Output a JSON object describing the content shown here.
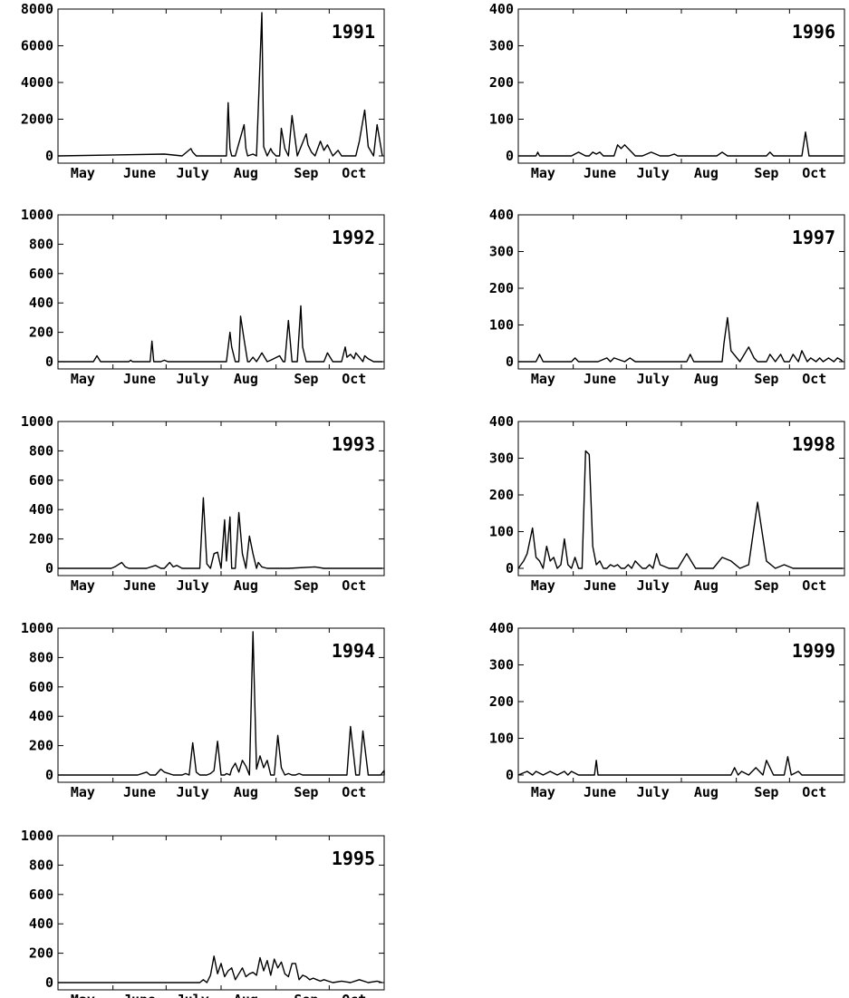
{
  "chart_data": [
    {
      "type": "line",
      "title": "1991",
      "months": [
        "May",
        "June",
        "July",
        "Aug",
        "Sep",
        "Oct"
      ],
      "ylim": [
        0,
        8000
      ],
      "yticks": [
        0,
        2000,
        4000,
        6000,
        8000
      ],
      "x": [
        0,
        60,
        70,
        75,
        76,
        78,
        80,
        95,
        96,
        97,
        98,
        100,
        105,
        106,
        107,
        110,
        112,
        115,
        116,
        118,
        120,
        121,
        123,
        125,
        126,
        128,
        130,
        132,
        135,
        140,
        141,
        143,
        145,
        148,
        150,
        152,
        155,
        158,
        160,
        165,
        168,
        170,
        173,
        175,
        178,
        180,
        183
      ],
      "y": [
        0,
        100,
        0,
        400,
        200,
        0,
        0,
        0,
        2900,
        400,
        0,
        0,
        1700,
        400,
        0,
        100,
        0,
        8000,
        500,
        0,
        400,
        200,
        0,
        0,
        1500,
        400,
        0,
        2200,
        0,
        1200,
        600,
        200,
        0,
        800,
        300,
        600,
        0,
        300,
        0,
        0,
        0,
        800,
        2500,
        500,
        0,
        1700,
        0
      ]
    },
    {
      "type": "line",
      "title": "1992",
      "months": [
        "May",
        "June",
        "July",
        "Aug",
        "Sep",
        "Oct"
      ],
      "ylim": [
        0,
        1000
      ],
      "yticks": [
        0,
        200,
        400,
        600,
        800,
        1000
      ],
      "x": [
        0,
        20,
        22,
        24,
        40,
        41,
        42,
        52,
        53,
        54,
        58,
        60,
        62,
        70,
        95,
        97,
        98,
        100,
        102,
        103,
        105,
        107,
        108,
        110,
        112,
        113,
        115,
        118,
        120,
        125,
        127,
        128,
        130,
        132,
        135,
        137,
        138,
        140,
        145,
        150,
        152,
        155,
        160,
        162,
        163,
        165,
        167,
        168,
        170,
        172,
        173,
        175,
        178,
        183
      ],
      "y": [
        0,
        0,
        40,
        0,
        0,
        10,
        0,
        0,
        140,
        0,
        0,
        10,
        0,
        0,
        0,
        200,
        100,
        0,
        0,
        310,
        150,
        0,
        0,
        30,
        0,
        20,
        60,
        0,
        10,
        40,
        0,
        0,
        280,
        0,
        0,
        380,
        100,
        0,
        0,
        0,
        60,
        0,
        0,
        100,
        30,
        50,
        20,
        60,
        30,
        0,
        40,
        20,
        0,
        0
      ]
    },
    {
      "type": "line",
      "title": "1993",
      "months": [
        "May",
        "June",
        "July",
        "Aug",
        "Sep",
        "Oct"
      ],
      "ylim": [
        0,
        1000
      ],
      "yticks": [
        0,
        200,
        400,
        600,
        800,
        1000
      ],
      "x": [
        0,
        30,
        32,
        36,
        38,
        40,
        50,
        55,
        58,
        60,
        63,
        65,
        67,
        70,
        80,
        82,
        84,
        86,
        88,
        90,
        92,
        94,
        95,
        97,
        98,
        100,
        102,
        104,
        106,
        108,
        110,
        112,
        113,
        115,
        118,
        120,
        130,
        145,
        150,
        183
      ],
      "y": [
        0,
        0,
        10,
        40,
        10,
        0,
        0,
        20,
        0,
        0,
        40,
        10,
        20,
        0,
        0,
        480,
        30,
        0,
        100,
        110,
        0,
        330,
        50,
        350,
        0,
        0,
        380,
        100,
        0,
        220,
        100,
        0,
        40,
        10,
        0,
        0,
        0,
        10,
        0,
        0
      ]
    },
    {
      "type": "line",
      "title": "1994",
      "months": [
        "May",
        "June",
        "July",
        "Aug",
        "Sep",
        "Oct"
      ],
      "ylim": [
        0,
        1000
      ],
      "yticks": [
        0,
        200,
        400,
        600,
        800,
        1000
      ],
      "x": [
        0,
        45,
        50,
        52,
        55,
        58,
        60,
        65,
        67,
        70,
        72,
        74,
        76,
        78,
        80,
        82,
        84,
        86,
        88,
        90,
        92,
        94,
        95,
        97,
        98,
        100,
        102,
        104,
        106,
        108,
        110,
        112,
        114,
        116,
        118,
        120,
        122,
        124,
        126,
        128,
        130,
        132,
        134,
        136,
        138,
        140,
        145,
        150,
        160,
        163,
        165,
        168,
        170,
        172,
        175,
        180,
        182,
        185,
        188,
        190,
        195,
        198,
        200
      ],
      "y": [
        0,
        0,
        20,
        0,
        0,
        40,
        20,
        0,
        0,
        0,
        10,
        0,
        220,
        20,
        0,
        0,
        0,
        10,
        30,
        230,
        0,
        0,
        10,
        0,
        40,
        80,
        20,
        100,
        60,
        0,
        1050,
        40,
        130,
        50,
        100,
        0,
        0,
        270,
        50,
        0,
        10,
        0,
        0,
        10,
        0,
        0,
        0,
        0,
        0,
        0,
        330,
        0,
        0,
        300,
        0,
        0,
        0,
        30,
        0,
        0,
        0,
        30,
        0
      ]
    },
    {
      "type": "line",
      "title": "1995",
      "months": [
        "May",
        "June",
        "July",
        "Aug",
        "Sep",
        "Oct"
      ],
      "ylim": [
        0,
        1000
      ],
      "yticks": [
        0,
        200,
        400,
        600,
        800,
        1000
      ],
      "x": [
        0,
        80,
        82,
        84,
        86,
        88,
        90,
        92,
        94,
        96,
        98,
        100,
        102,
        104,
        106,
        108,
        110,
        112,
        114,
        116,
        118,
        120,
        122,
        124,
        126,
        128,
        130,
        132,
        134,
        136,
        138,
        140,
        142,
        144,
        146,
        148,
        150,
        155,
        160,
        165,
        170,
        175,
        180,
        183
      ],
      "y": [
        0,
        0,
        20,
        0,
        50,
        180,
        60,
        130,
        40,
        80,
        100,
        20,
        60,
        100,
        40,
        60,
        70,
        50,
        170,
        80,
        150,
        50,
        160,
        100,
        140,
        60,
        40,
        130,
        130,
        20,
        50,
        40,
        20,
        30,
        20,
        10,
        20,
        0,
        10,
        0,
        20,
        0,
        10,
        0
      ]
    },
    {
      "type": "line",
      "title": "1996",
      "months": [
        "May",
        "June",
        "July",
        "Aug",
        "Sep",
        "Oct"
      ],
      "ylim": [
        0,
        400
      ],
      "yticks": [
        0,
        100,
        200,
        300,
        400
      ],
      "x": [
        0,
        10,
        11,
        12,
        30,
        34,
        38,
        40,
        42,
        44,
        46,
        48,
        54,
        56,
        58,
        60,
        62,
        64,
        66,
        70,
        75,
        80,
        85,
        88,
        90,
        95,
        100,
        112,
        115,
        118,
        120,
        140,
        142,
        144,
        150,
        160,
        162,
        164,
        180,
        183
      ],
      "y": [
        0,
        0,
        10,
        0,
        0,
        10,
        0,
        0,
        10,
        5,
        10,
        0,
        0,
        30,
        20,
        30,
        20,
        10,
        0,
        0,
        10,
        0,
        0,
        5,
        0,
        0,
        0,
        0,
        10,
        0,
        0,
        0,
        10,
        0,
        0,
        0,
        65,
        0,
        0,
        0
      ]
    },
    {
      "type": "line",
      "title": "1997",
      "months": [
        "May",
        "June",
        "July",
        "Aug",
        "Sep",
        "Oct"
      ],
      "ylim": [
        0,
        400
      ],
      "yticks": [
        0,
        100,
        200,
        300,
        400
      ],
      "x": [
        0,
        10,
        12,
        14,
        30,
        32,
        34,
        45,
        50,
        52,
        54,
        60,
        63,
        66,
        70,
        90,
        95,
        97,
        99,
        115,
        116,
        118,
        120,
        125,
        130,
        133,
        135,
        140,
        142,
        145,
        148,
        150,
        153,
        155,
        158,
        160,
        163,
        165,
        168,
        170,
        172,
        175,
        178,
        180,
        182,
        183
      ],
      "y": [
        0,
        0,
        20,
        0,
        0,
        10,
        0,
        0,
        10,
        0,
        10,
        0,
        10,
        0,
        0,
        0,
        0,
        20,
        0,
        0,
        50,
        120,
        30,
        0,
        40,
        10,
        0,
        0,
        20,
        0,
        20,
        0,
        0,
        20,
        0,
        30,
        0,
        10,
        0,
        10,
        0,
        10,
        0,
        10,
        5,
        0
      ]
    },
    {
      "type": "line",
      "title": "1998",
      "months": [
        "May",
        "June",
        "July",
        "Aug",
        "Sep",
        "Oct"
      ],
      "ylim": [
        0,
        400
      ],
      "yticks": [
        0,
        100,
        200,
        300,
        400
      ],
      "x": [
        0,
        3,
        5,
        8,
        10,
        12,
        14,
        16,
        18,
        20,
        22,
        24,
        26,
        28,
        30,
        32,
        34,
        36,
        38,
        40,
        42,
        44,
        46,
        48,
        50,
        52,
        54,
        56,
        58,
        60,
        62,
        64,
        66,
        68,
        70,
        72,
        74,
        76,
        78,
        80,
        85,
        90,
        95,
        100,
        105,
        110,
        115,
        120,
        125,
        130,
        135,
        140,
        145,
        150,
        155,
        160,
        165,
        170,
        175,
        183
      ],
      "y": [
        0,
        20,
        40,
        110,
        30,
        20,
        0,
        60,
        20,
        30,
        0,
        10,
        80,
        10,
        0,
        30,
        0,
        0,
        320,
        310,
        60,
        10,
        20,
        0,
        0,
        10,
        5,
        10,
        0,
        0,
        10,
        0,
        20,
        10,
        0,
        0,
        10,
        0,
        40,
        10,
        0,
        0,
        40,
        0,
        0,
        0,
        30,
        20,
        0,
        10,
        180,
        20,
        0,
        10,
        0,
        0,
        0,
        0,
        0,
        0
      ]
    },
    {
      "type": "line",
      "title": "1999",
      "months": [
        "May",
        "June",
        "July",
        "Aug",
        "Sep",
        "Oct"
      ],
      "ylim": [
        0,
        400
      ],
      "yticks": [
        0,
        100,
        200,
        300,
        400
      ],
      "x": [
        0,
        5,
        8,
        10,
        14,
        18,
        22,
        26,
        28,
        30,
        34,
        38,
        40,
        43,
        44,
        45,
        50,
        80,
        85,
        90,
        100,
        110,
        120,
        122,
        124,
        126,
        130,
        134,
        138,
        140,
        142,
        144,
        146,
        150,
        152,
        154,
        158,
        160,
        183
      ],
      "y": [
        0,
        10,
        0,
        10,
        0,
        10,
        0,
        10,
        0,
        10,
        0,
        0,
        0,
        0,
        40,
        0,
        0,
        0,
        0,
        0,
        0,
        0,
        0,
        20,
        0,
        10,
        0,
        20,
        0,
        40,
        20,
        0,
        0,
        0,
        50,
        0,
        10,
        0,
        0
      ]
    }
  ]
}
